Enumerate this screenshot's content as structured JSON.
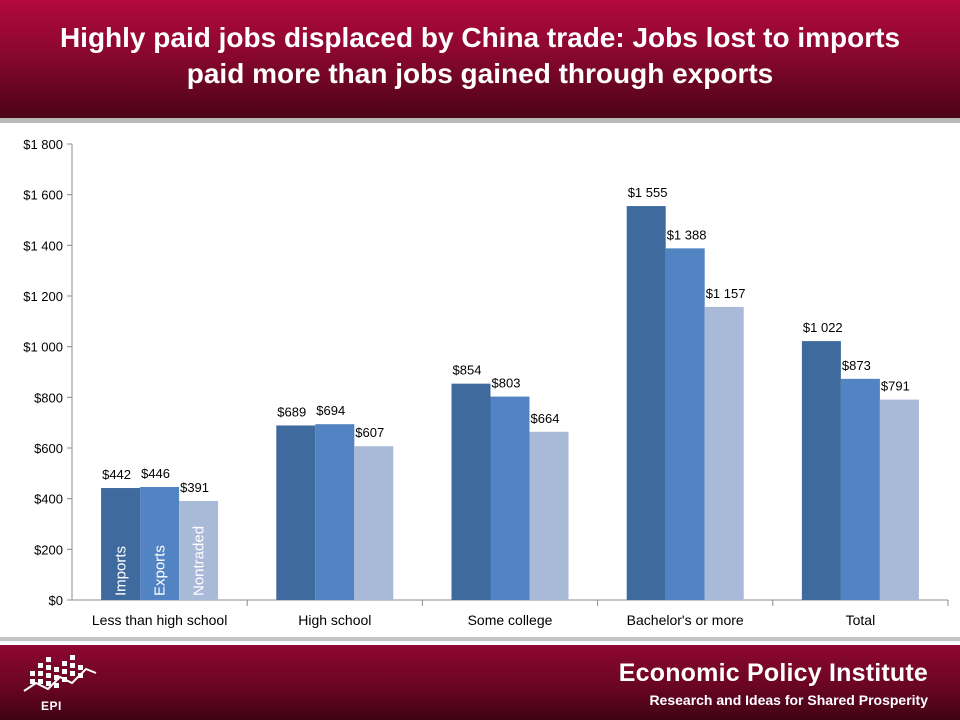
{
  "title": "Highly paid jobs displaced by China trade: Jobs lost to imports paid more than jobs gained through exports",
  "colors": {
    "imports": "#3f6a9e",
    "exports": "#5283c2",
    "nontraded": "#a9bad9",
    "accent": "#8a0730"
  },
  "chart_data": {
    "type": "bar",
    "categories": [
      "Less than high school",
      "High school",
      "Some college",
      "Bachelor's or more",
      "Total"
    ],
    "series": [
      {
        "name": "Imports",
        "values": [
          442,
          689,
          854,
          1555,
          1022
        ],
        "labels": [
          "$442",
          "$689",
          "$854",
          "$1 555",
          "$1 022"
        ]
      },
      {
        "name": "Exports",
        "values": [
          446,
          694,
          803,
          1388,
          873
        ],
        "labels": [
          "$446",
          "$694",
          "$803",
          "$1 388",
          "$873"
        ]
      },
      {
        "name": "Nontraded",
        "values": [
          391,
          607,
          664,
          1157,
          791
        ],
        "labels": [
          "$391",
          "$607",
          "$664",
          "$1 157",
          "$791"
        ]
      }
    ],
    "ylim": [
      0,
      1800
    ],
    "yticks": [
      0,
      200,
      400,
      600,
      800,
      1000,
      1200,
      1400,
      1600,
      1800
    ],
    "ytick_labels": [
      "$0",
      "$200",
      "$400",
      "$600",
      "$800",
      "$1 000",
      "$1 200",
      "$1 400",
      "$1 600",
      "$1 800"
    ],
    "legend_placement": "inside first bar group, vertical text",
    "grid": false
  },
  "footer": {
    "org_name": "Economic Policy Institute",
    "tagline": "Research and Ideas for Shared Prosperity",
    "logo_text": "EPI"
  }
}
